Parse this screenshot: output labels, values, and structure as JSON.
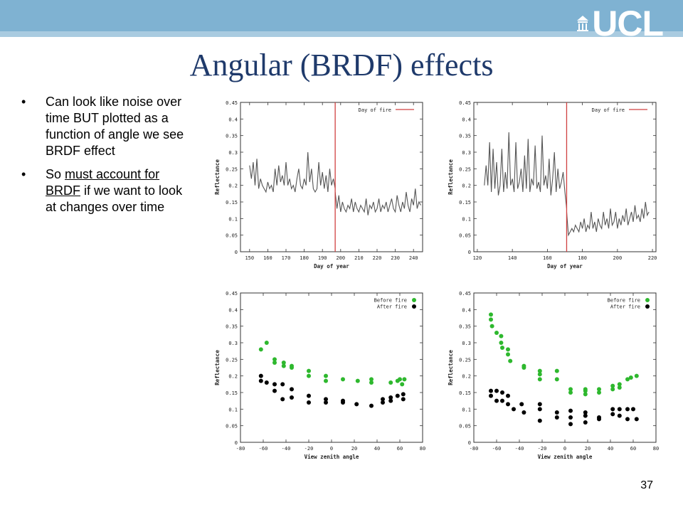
{
  "slide": {
    "title": "Angular (BRDF) effects",
    "page_number": "37",
    "logo_text": "UCL",
    "bullets": [
      {
        "parts": [
          {
            "text": "Can look like noise over time BUT plotted as a function of angle we see BRDF effect",
            "underline": false
          }
        ]
      },
      {
        "parts": [
          {
            "text": "So ",
            "underline": false
          },
          {
            "text": "must account for BRDF",
            "underline": true
          },
          {
            "text": " if we want to look at changes over time",
            "underline": false
          }
        ]
      }
    ],
    "bullet_symbol": "•",
    "colors": {
      "title": "#1f3a6b",
      "topbar": "#7fb2d2",
      "before_fire": "#2eb82e",
      "after_fire": "#000000",
      "fire_line": "#d04040",
      "series_line": "#555555"
    }
  },
  "chart_data": [
    {
      "type": "line",
      "xlabel": "Day of year",
      "ylabel": "Reflectance",
      "xlim": [
        145,
        245
      ],
      "ylim": [
        0,
        0.45
      ],
      "xticks": [
        150,
        160,
        170,
        180,
        190,
        200,
        210,
        220,
        230,
        240
      ],
      "yticks": [
        0,
        0.05,
        0.1,
        0.15,
        0.2,
        0.25,
        0.3,
        0.35,
        0.4,
        0.45
      ],
      "grid": false,
      "legend": {
        "position": "top-right",
        "entries": [
          "Day of fire"
        ]
      },
      "vline": {
        "x": 197,
        "name": "Day of fire"
      },
      "series": [
        {
          "x": [
            150,
            151,
            152,
            153,
            154,
            155,
            156,
            157,
            158,
            159,
            160,
            161,
            162,
            163,
            164,
            165,
            166,
            167,
            168,
            169,
            170,
            171,
            172,
            173,
            174,
            175,
            176,
            177,
            178,
            179,
            180,
            181,
            182,
            183,
            184,
            185,
            186,
            187,
            188,
            189,
            190,
            191,
            192,
            193,
            194,
            195,
            196,
            197
          ],
          "y": [
            0.26,
            0.22,
            0.27,
            0.2,
            0.28,
            0.19,
            0.22,
            0.2,
            0.19,
            0.18,
            0.21,
            0.19,
            0.2,
            0.18,
            0.25,
            0.2,
            0.26,
            0.21,
            0.23,
            0.2,
            0.27,
            0.2,
            0.22,
            0.19,
            0.2,
            0.18,
            0.22,
            0.25,
            0.2,
            0.19,
            0.22,
            0.2,
            0.3,
            0.21,
            0.25,
            0.19,
            0.18,
            0.19,
            0.27,
            0.2,
            0.24,
            0.19,
            0.23,
            0.18,
            0.25,
            0.2,
            0.22,
            0.19
          ]
        },
        {
          "x": [
            197,
            198,
            199,
            200,
            201,
            202,
            203,
            204,
            205,
            206,
            207,
            208,
            209,
            210,
            211,
            212,
            213,
            214,
            215,
            216,
            217,
            218,
            219,
            220,
            221,
            222,
            223,
            224,
            225,
            226,
            227,
            228,
            229,
            230,
            231,
            232,
            233,
            234,
            235,
            236,
            237,
            238,
            239,
            240,
            241,
            242,
            243,
            244
          ],
          "y": [
            0.18,
            0.13,
            0.17,
            0.12,
            0.15,
            0.13,
            0.12,
            0.14,
            0.13,
            0.16,
            0.12,
            0.15,
            0.13,
            0.12,
            0.14,
            0.13,
            0.12,
            0.16,
            0.11,
            0.14,
            0.13,
            0.15,
            0.12,
            0.13,
            0.16,
            0.12,
            0.14,
            0.13,
            0.15,
            0.12,
            0.14,
            0.16,
            0.13,
            0.12,
            0.17,
            0.14,
            0.12,
            0.15,
            0.13,
            0.18,
            0.14,
            0.12,
            0.16,
            0.14,
            0.19,
            0.13,
            0.15,
            0.14
          ]
        }
      ]
    },
    {
      "type": "line",
      "xlabel": "Day of year",
      "ylabel": "Reflectance",
      "xlim": [
        118,
        222
      ],
      "ylim": [
        0,
        0.45
      ],
      "xticks": [
        120,
        140,
        160,
        180,
        200,
        220
      ],
      "yticks": [
        0,
        0.05,
        0.1,
        0.15,
        0.2,
        0.25,
        0.3,
        0.35,
        0.4,
        0.45
      ],
      "grid": false,
      "legend": {
        "position": "top-right",
        "entries": [
          "Day of fire"
        ]
      },
      "vline": {
        "x": 171,
        "name": "Day of fire"
      },
      "series": [
        {
          "x": [
            124,
            125,
            126,
            127,
            128,
            129,
            130,
            131,
            132,
            133,
            134,
            135,
            136,
            137,
            138,
            139,
            140,
            141,
            142,
            143,
            144,
            145,
            146,
            147,
            148,
            149,
            150,
            151,
            152,
            153,
            154,
            155,
            156,
            157,
            158,
            159,
            160,
            161,
            162,
            163,
            164,
            165,
            166,
            167,
            168,
            169,
            170,
            171
          ],
          "y": [
            0.2,
            0.26,
            0.2,
            0.33,
            0.18,
            0.31,
            0.19,
            0.27,
            0.17,
            0.2,
            0.31,
            0.18,
            0.24,
            0.19,
            0.36,
            0.2,
            0.22,
            0.18,
            0.33,
            0.19,
            0.21,
            0.25,
            0.18,
            0.29,
            0.19,
            0.34,
            0.18,
            0.22,
            0.2,
            0.32,
            0.19,
            0.21,
            0.18,
            0.35,
            0.2,
            0.23,
            0.19,
            0.28,
            0.17,
            0.22,
            0.3,
            0.18,
            0.25,
            0.19,
            0.21,
            0.24,
            0.18,
            0.13
          ]
        },
        {
          "x": [
            171,
            172,
            173,
            174,
            175,
            176,
            177,
            178,
            179,
            180,
            181,
            182,
            183,
            184,
            185,
            186,
            187,
            188,
            189,
            190,
            191,
            192,
            193,
            194,
            195,
            196,
            197,
            198,
            199,
            200,
            201,
            202,
            203,
            204,
            205,
            206,
            207,
            208,
            209,
            210,
            211,
            212,
            213,
            214,
            215,
            216,
            217,
            218
          ],
          "y": [
            0.12,
            0.05,
            0.06,
            0.07,
            0.06,
            0.08,
            0.07,
            0.06,
            0.09,
            0.07,
            0.1,
            0.06,
            0.08,
            0.07,
            0.12,
            0.07,
            0.09,
            0.06,
            0.1,
            0.08,
            0.07,
            0.12,
            0.08,
            0.1,
            0.07,
            0.13,
            0.08,
            0.09,
            0.12,
            0.07,
            0.1,
            0.08,
            0.11,
            0.09,
            0.13,
            0.08,
            0.1,
            0.12,
            0.09,
            0.14,
            0.1,
            0.11,
            0.09,
            0.13,
            0.1,
            0.15,
            0.11,
            0.12
          ]
        }
      ]
    },
    {
      "type": "scatter",
      "xlabel": "View zenith angle",
      "ylabel": "Reflectance",
      "xlim": [
        -80,
        80
      ],
      "ylim": [
        0,
        0.45
      ],
      "xticks": [
        -80,
        -60,
        -40,
        -20,
        0,
        20,
        40,
        60,
        80
      ],
      "yticks": [
        0,
        0.05,
        0.1,
        0.15,
        0.2,
        0.25,
        0.3,
        0.35,
        0.4,
        0.45
      ],
      "grid": false,
      "legend": {
        "position": "top-right",
        "entries": [
          "Before fire",
          "After fire"
        ]
      },
      "series": [
        {
          "name": "Before fire",
          "x": [
            -62,
            -57,
            -50,
            -50,
            -42,
            -42,
            -35,
            -35,
            -20,
            -20,
            -5,
            -5,
            10,
            23,
            35,
            35,
            52,
            58,
            60,
            62,
            64
          ],
          "y": [
            0.28,
            0.3,
            0.25,
            0.24,
            0.24,
            0.23,
            0.23,
            0.225,
            0.215,
            0.2,
            0.2,
            0.185,
            0.19,
            0.185,
            0.19,
            0.18,
            0.18,
            0.185,
            0.19,
            0.175,
            0.19
          ]
        },
        {
          "name": "After fire",
          "x": [
            -62,
            -62,
            -57,
            -50,
            -50,
            -43,
            -43,
            -35,
            -35,
            -20,
            -20,
            -5,
            -5,
            10,
            10,
            22,
            35,
            45,
            45,
            52,
            52,
            58,
            63,
            63
          ],
          "y": [
            0.2,
            0.185,
            0.18,
            0.175,
            0.155,
            0.175,
            0.13,
            0.16,
            0.135,
            0.14,
            0.12,
            0.13,
            0.12,
            0.125,
            0.12,
            0.115,
            0.11,
            0.13,
            0.12,
            0.135,
            0.125,
            0.14,
            0.145,
            0.13
          ]
        }
      ]
    },
    {
      "type": "scatter",
      "xlabel": "View zenith angle",
      "ylabel": "Reflectance",
      "xlim": [
        -80,
        80
      ],
      "ylim": [
        0,
        0.45
      ],
      "xticks": [
        -80,
        -60,
        -40,
        -20,
        0,
        20,
        40,
        60,
        80
      ],
      "yticks": [
        0,
        0.05,
        0.1,
        0.15,
        0.2,
        0.25,
        0.3,
        0.35,
        0.4,
        0.45
      ],
      "grid": false,
      "legend": {
        "position": "top-right",
        "entries": [
          "Before fire",
          "After fire"
        ]
      },
      "series": [
        {
          "name": "Before fire",
          "x": [
            -65,
            -65,
            -64,
            -60,
            -56,
            -56,
            -55,
            -50,
            -50,
            -48,
            -36,
            -36,
            -22,
            -22,
            -22,
            -7,
            -7,
            5,
            5,
            18,
            18,
            18,
            30,
            30,
            42,
            42,
            48,
            48,
            55,
            58,
            63
          ],
          "y": [
            0.385,
            0.37,
            0.35,
            0.33,
            0.32,
            0.3,
            0.285,
            0.28,
            0.265,
            0.245,
            0.23,
            0.225,
            0.215,
            0.205,
            0.19,
            0.215,
            0.19,
            0.16,
            0.15,
            0.16,
            0.155,
            0.145,
            0.16,
            0.15,
            0.17,
            0.16,
            0.175,
            0.165,
            0.19,
            0.195,
            0.2
          ]
        },
        {
          "name": "After fire",
          "x": [
            -65,
            -65,
            -60,
            -60,
            -55,
            -55,
            -50,
            -50,
            -45,
            -38,
            -36,
            -22,
            -22,
            -22,
            -7,
            -7,
            5,
            5,
            5,
            18,
            18,
            18,
            30,
            30,
            42,
            42,
            48,
            48,
            55,
            55,
            60,
            63
          ],
          "y": [
            0.155,
            0.14,
            0.155,
            0.125,
            0.15,
            0.125,
            0.14,
            0.115,
            0.1,
            0.115,
            0.09,
            0.115,
            0.1,
            0.065,
            0.09,
            0.075,
            0.095,
            0.075,
            0.055,
            0.09,
            0.08,
            0.06,
            0.075,
            0.07,
            0.1,
            0.085,
            0.1,
            0.08,
            0.1,
            0.07,
            0.1,
            0.07
          ]
        }
      ]
    }
  ]
}
